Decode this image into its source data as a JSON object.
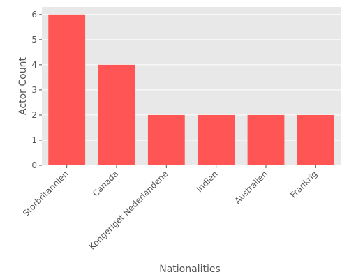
{
  "chart_data": {
    "type": "bar",
    "categories": [
      "Storbritannien",
      "Canada",
      "Kongeriget Nederlandene",
      "Indien",
      "Australien",
      "Frankrig"
    ],
    "values": [
      6,
      4,
      2,
      2,
      2,
      2
    ],
    "title": "",
    "xlabel": "Nationalities",
    "ylabel": "Actor Count",
    "ylim": [
      0,
      6.3
    ],
    "yticks": [
      0,
      1,
      2,
      3,
      4,
      5,
      6
    ],
    "grid": true,
    "legend": "none",
    "bar_color": "#ff5555",
    "plot_background": "#e8e8e8",
    "grid_color": "#ffffff"
  }
}
